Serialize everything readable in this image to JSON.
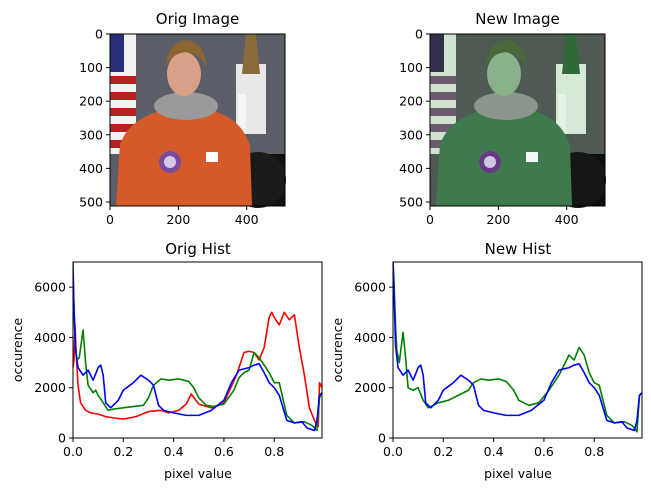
{
  "colors": {
    "red": "#ff0000",
    "green": "#008000",
    "blue": "#0000ff"
  },
  "chart_data": [
    {
      "type": "image",
      "title": "Orig Image",
      "xticks": [
        0,
        200,
        400
      ],
      "yticks": [
        0,
        100,
        200,
        300,
        400,
        500
      ],
      "xlim": [
        0,
        512
      ],
      "ylim": [
        512,
        0
      ],
      "subject": "astronaut portrait in orange spacesuit with American flag and space shuttle model"
    },
    {
      "type": "image",
      "title": "New Image",
      "xticks": [
        0,
        200,
        400
      ],
      "yticks": [
        0,
        100,
        200,
        300,
        400,
        500
      ],
      "xlim": [
        0,
        512
      ],
      "ylim": [
        512,
        0
      ],
      "subject": "same astronaut portrait with a green tint"
    },
    {
      "type": "line",
      "title": "Orig Hist",
      "xlabel": "pixel value",
      "ylabel": "occurence",
      "xlim": [
        0,
        0.99
      ],
      "ylim": [
        0,
        7000
      ],
      "xticks": [
        0.0,
        0.2,
        0.4,
        0.6,
        0.8
      ],
      "xticklabels": [
        "0.0",
        "0.2",
        "0.4",
        "0.6",
        "0.8"
      ],
      "yticks": [
        0,
        2000,
        4000,
        6000
      ],
      "series": [
        {
          "color": "red",
          "points": [
            [
              0,
              2800
            ],
            [
              0.004,
              3100
            ],
            [
              0.008,
              4500
            ],
            [
              0.012,
              3500
            ],
            [
              0.02,
              2100
            ],
            [
              0.03,
              1400
            ],
            [
              0.05,
              1100
            ],
            [
              0.07,
              1000
            ],
            [
              0.1,
              950
            ],
            [
              0.13,
              850
            ],
            [
              0.16,
              800
            ],
            [
              0.2,
              750
            ],
            [
              0.25,
              850
            ],
            [
              0.3,
              1050
            ],
            [
              0.35,
              1100
            ],
            [
              0.38,
              1000
            ],
            [
              0.42,
              1100
            ],
            [
              0.45,
              1350
            ],
            [
              0.47,
              1750
            ],
            [
              0.5,
              1350
            ],
            [
              0.55,
              1200
            ],
            [
              0.6,
              1400
            ],
            [
              0.65,
              2500
            ],
            [
              0.68,
              3400
            ],
            [
              0.7,
              3450
            ],
            [
              0.72,
              3400
            ],
            [
              0.74,
              3100
            ],
            [
              0.76,
              3600
            ],
            [
              0.78,
              4800
            ],
            [
              0.79,
              5000
            ],
            [
              0.8,
              4800
            ],
            [
              0.82,
              4500
            ],
            [
              0.84,
              5000
            ],
            [
              0.86,
              4700
            ],
            [
              0.88,
              4900
            ],
            [
              0.9,
              3600
            ],
            [
              0.92,
              2500
            ],
            [
              0.94,
              1200
            ],
            [
              0.96,
              700
            ],
            [
              0.975,
              450
            ],
            [
              0.98,
              2200
            ],
            [
              0.99,
              2000
            ]
          ]
        },
        {
          "color": "green",
          "points": [
            [
              0,
              7000
            ],
            [
              0.003,
              5500
            ],
            [
              0.008,
              4000
            ],
            [
              0.015,
              3100
            ],
            [
              0.025,
              3200
            ],
            [
              0.04,
              4300
            ],
            [
              0.05,
              3000
            ],
            [
              0.06,
              2100
            ],
            [
              0.08,
              1800
            ],
            [
              0.09,
              1900
            ],
            [
              0.1,
              1700
            ],
            [
              0.12,
              1400
            ],
            [
              0.14,
              1100
            ],
            [
              0.16,
              1150
            ],
            [
              0.2,
              1200
            ],
            [
              0.24,
              1250
            ],
            [
              0.28,
              1300
            ],
            [
              0.3,
              1600
            ],
            [
              0.32,
              2100
            ],
            [
              0.35,
              2350
            ],
            [
              0.38,
              2300
            ],
            [
              0.42,
              2350
            ],
            [
              0.44,
              2300
            ],
            [
              0.46,
              2250
            ],
            [
              0.48,
              2000
            ],
            [
              0.5,
              1600
            ],
            [
              0.53,
              1300
            ],
            [
              0.56,
              1250
            ],
            [
              0.6,
              1350
            ],
            [
              0.64,
              1900
            ],
            [
              0.66,
              2400
            ],
            [
              0.68,
              2600
            ],
            [
              0.7,
              2700
            ],
            [
              0.72,
              3400
            ],
            [
              0.74,
              3200
            ],
            [
              0.76,
              2900
            ],
            [
              0.78,
              2600
            ],
            [
              0.8,
              2200
            ],
            [
              0.82,
              2200
            ],
            [
              0.85,
              900
            ],
            [
              0.88,
              600
            ],
            [
              0.92,
              650
            ],
            [
              0.95,
              500
            ],
            [
              0.97,
              300
            ],
            [
              0.98,
              1600
            ],
            [
              0.99,
              1800
            ]
          ]
        },
        {
          "color": "blue",
          "points": [
            [
              0,
              6600
            ],
            [
              0.004,
              5200
            ],
            [
              0.01,
              3500
            ],
            [
              0.02,
              2800
            ],
            [
              0.04,
              2500
            ],
            [
              0.06,
              2700
            ],
            [
              0.08,
              2300
            ],
            [
              0.1,
              2800
            ],
            [
              0.11,
              2900
            ],
            [
              0.12,
              2500
            ],
            [
              0.13,
              1400
            ],
            [
              0.15,
              1200
            ],
            [
              0.18,
              1500
            ],
            [
              0.2,
              1900
            ],
            [
              0.24,
              2200
            ],
            [
              0.27,
              2500
            ],
            [
              0.3,
              2300
            ],
            [
              0.32,
              2100
            ],
            [
              0.34,
              1300
            ],
            [
              0.36,
              1100
            ],
            [
              0.4,
              1000
            ],
            [
              0.45,
              900
            ],
            [
              0.5,
              900
            ],
            [
              0.55,
              1100
            ],
            [
              0.6,
              1500
            ],
            [
              0.63,
              2200
            ],
            [
              0.66,
              2700
            ],
            [
              0.7,
              2800
            ],
            [
              0.72,
              2900
            ],
            [
              0.74,
              2950
            ],
            [
              0.76,
              2600
            ],
            [
              0.78,
              2200
            ],
            [
              0.8,
              2000
            ],
            [
              0.82,
              1700
            ],
            [
              0.85,
              700
            ],
            [
              0.88,
              600
            ],
            [
              0.91,
              650
            ],
            [
              0.93,
              400
            ],
            [
              0.96,
              300
            ],
            [
              0.97,
              700
            ],
            [
              0.98,
              1700
            ],
            [
              0.99,
              1800
            ]
          ]
        }
      ]
    },
    {
      "type": "line",
      "title": "New Hist",
      "xlabel": "pixel value",
      "ylabel": "occurence",
      "xlim": [
        0,
        0.99
      ],
      "ylim": [
        0,
        7000
      ],
      "xticks": [
        0.0,
        0.2,
        0.4,
        0.6,
        0.8
      ],
      "xticklabels": [
        "0.0",
        "0.2",
        "0.4",
        "0.6",
        "0.8"
      ],
      "yticks": [
        0,
        2000,
        4000,
        6000
      ],
      "series": [
        {
          "color": "green",
          "points": [
            [
              0,
              7000
            ],
            [
              0.004,
              6200
            ],
            [
              0.01,
              4500
            ],
            [
              0.015,
              3500
            ],
            [
              0.025,
              3000
            ],
            [
              0.04,
              4200
            ],
            [
              0.05,
              3200
            ],
            [
              0.06,
              2000
            ],
            [
              0.08,
              1900
            ],
            [
              0.1,
              2000
            ],
            [
              0.12,
              1500
            ],
            [
              0.14,
              1200
            ],
            [
              0.18,
              1400
            ],
            [
              0.22,
              1500
            ],
            [
              0.26,
              1700
            ],
            [
              0.3,
              1900
            ],
            [
              0.32,
              2200
            ],
            [
              0.35,
              2350
            ],
            [
              0.38,
              2300
            ],
            [
              0.42,
              2350
            ],
            [
              0.45,
              2250
            ],
            [
              0.48,
              1900
            ],
            [
              0.5,
              1500
            ],
            [
              0.54,
              1300
            ],
            [
              0.58,
              1400
            ],
            [
              0.62,
              1900
            ],
            [
              0.66,
              2500
            ],
            [
              0.68,
              2900
            ],
            [
              0.7,
              3300
            ],
            [
              0.72,
              3100
            ],
            [
              0.74,
              3600
            ],
            [
              0.76,
              3300
            ],
            [
              0.78,
              2600
            ],
            [
              0.8,
              2200
            ],
            [
              0.82,
              2100
            ],
            [
              0.85,
              900
            ],
            [
              0.88,
              600
            ],
            [
              0.92,
              650
            ],
            [
              0.95,
              500
            ],
            [
              0.97,
              250
            ],
            [
              0.98,
              1700
            ],
            [
              0.99,
              1800
            ]
          ]
        },
        {
          "color": "blue",
          "points": [
            [
              0,
              7000
            ],
            [
              0.004,
              5800
            ],
            [
              0.01,
              3700
            ],
            [
              0.02,
              2800
            ],
            [
              0.04,
              2500
            ],
            [
              0.06,
              2700
            ],
            [
              0.08,
              2300
            ],
            [
              0.1,
              2800
            ],
            [
              0.11,
              2900
            ],
            [
              0.12,
              2500
            ],
            [
              0.13,
              1400
            ],
            [
              0.15,
              1200
            ],
            [
              0.18,
              1500
            ],
            [
              0.2,
              1900
            ],
            [
              0.24,
              2200
            ],
            [
              0.27,
              2500
            ],
            [
              0.3,
              2300
            ],
            [
              0.32,
              2100
            ],
            [
              0.34,
              1300
            ],
            [
              0.36,
              1100
            ],
            [
              0.4,
              1000
            ],
            [
              0.45,
              900
            ],
            [
              0.5,
              900
            ],
            [
              0.55,
              1100
            ],
            [
              0.6,
              1500
            ],
            [
              0.63,
              2200
            ],
            [
              0.66,
              2700
            ],
            [
              0.7,
              2800
            ],
            [
              0.72,
              2900
            ],
            [
              0.74,
              2950
            ],
            [
              0.76,
              2600
            ],
            [
              0.78,
              2200
            ],
            [
              0.8,
              2000
            ],
            [
              0.82,
              1700
            ],
            [
              0.85,
              700
            ],
            [
              0.88,
              600
            ],
            [
              0.91,
              650
            ],
            [
              0.93,
              400
            ],
            [
              0.96,
              300
            ],
            [
              0.97,
              700
            ],
            [
              0.98,
              1700
            ],
            [
              0.99,
              1800
            ]
          ]
        }
      ]
    }
  ]
}
